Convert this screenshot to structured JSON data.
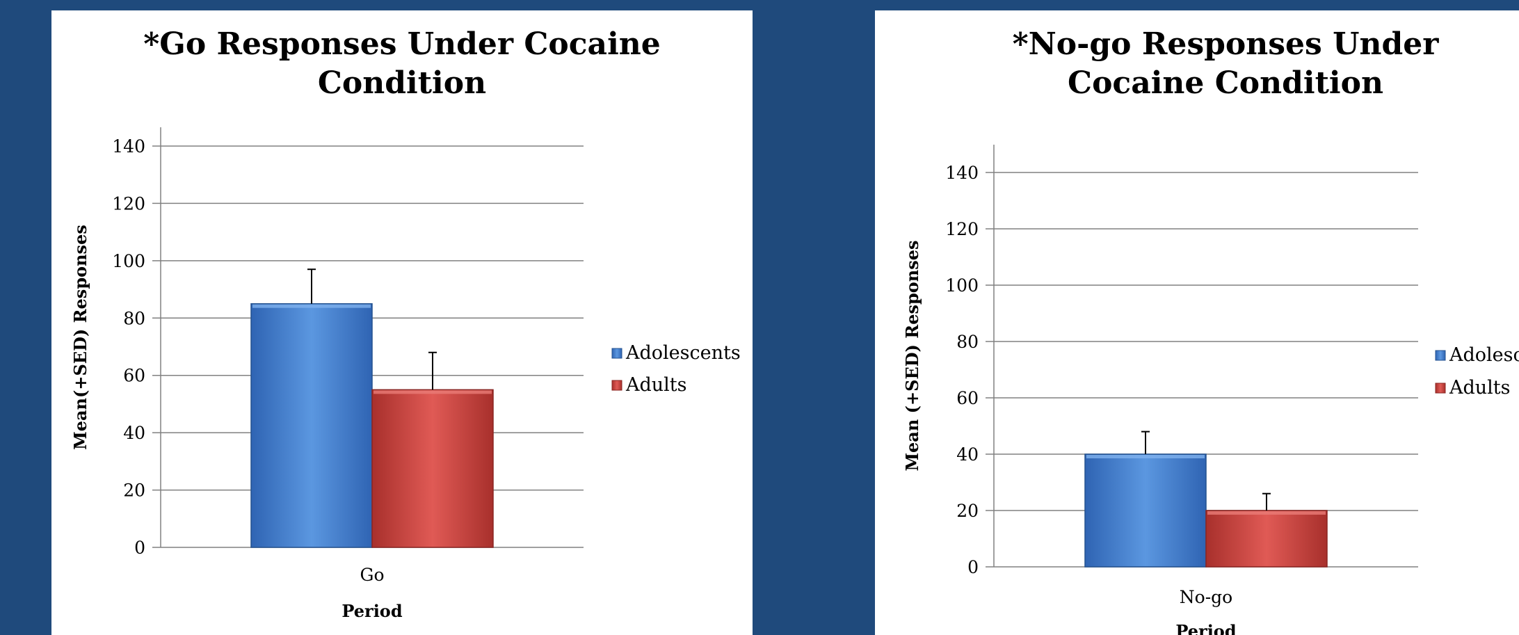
{
  "colors": {
    "background": "#1f4a7c",
    "panel": "#ffffff",
    "adolescents_top": "#5b97e0",
    "adolescents_bottom": "#2f64b3",
    "adults_top": "#e05a55",
    "adults_bottom": "#a8302c",
    "grid": "#808080",
    "error_bar": "#000000"
  },
  "chart_data": [
    {
      "type": "bar",
      "title_lines": [
        "*Go Responses Under Cocaine",
        "Condition"
      ],
      "xlabel": "Period",
      "ylabel": "Mean(+SED) Responses",
      "categories": [
        "Go"
      ],
      "ylim": [
        0,
        140
      ],
      "yticks": [
        0,
        20,
        40,
        60,
        80,
        100,
        120,
        140
      ],
      "grid": true,
      "legend_position": "right",
      "series": [
        {
          "name": "Adolescents",
          "values": [
            85
          ],
          "error": [
            12
          ],
          "color": "#3f7fd4"
        },
        {
          "name": "Adults",
          "values": [
            55
          ],
          "error": [
            13
          ],
          "color": "#c94440"
        }
      ]
    },
    {
      "type": "bar",
      "title_lines": [
        "*No-go Responses Under",
        "Cocaine Condition"
      ],
      "xlabel": "Period",
      "ylabel": "Mean (+SED) Responses",
      "categories": [
        "No-go"
      ],
      "ylim": [
        0,
        140
      ],
      "yticks": [
        0,
        20,
        40,
        60,
        80,
        100,
        120,
        140
      ],
      "grid": true,
      "legend_position": "right",
      "series": [
        {
          "name": "Adolescents",
          "values": [
            40
          ],
          "error": [
            8
          ],
          "color": "#3f7fd4"
        },
        {
          "name": "Adults",
          "values": [
            20
          ],
          "error": [
            6
          ],
          "color": "#c94440"
        }
      ]
    }
  ]
}
